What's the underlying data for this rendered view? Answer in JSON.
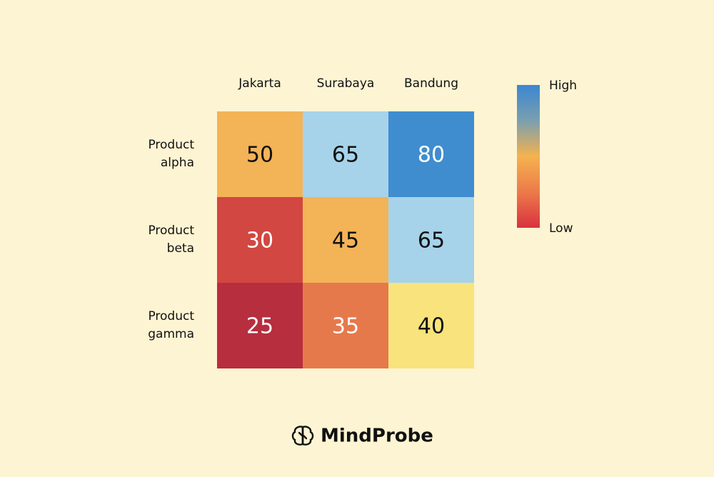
{
  "chart_data": {
    "type": "heatmap",
    "columns": [
      "Jakarta",
      "Surabaya",
      "Bandung"
    ],
    "rows": [
      "Product alpha",
      "Product beta",
      "Product gamma"
    ],
    "values": [
      [
        50,
        65,
        80
      ],
      [
        30,
        45,
        65
      ],
      [
        25,
        35,
        40
      ]
    ],
    "colors": [
      [
        "#f3b357",
        "#a6d3ea",
        "#3f8dcf"
      ],
      [
        "#d24741",
        "#f3b357",
        "#a6d3ea"
      ],
      [
        "#b72e3e",
        "#e6794b",
        "#f8e37d"
      ]
    ],
    "legend": {
      "high": "High",
      "low": "Low",
      "colorscale": [
        "#d9313f",
        "#ec7a4a",
        "#f5b24f",
        "#7a9fae",
        "#3c86d2"
      ]
    }
  },
  "footer": "MindProbe"
}
